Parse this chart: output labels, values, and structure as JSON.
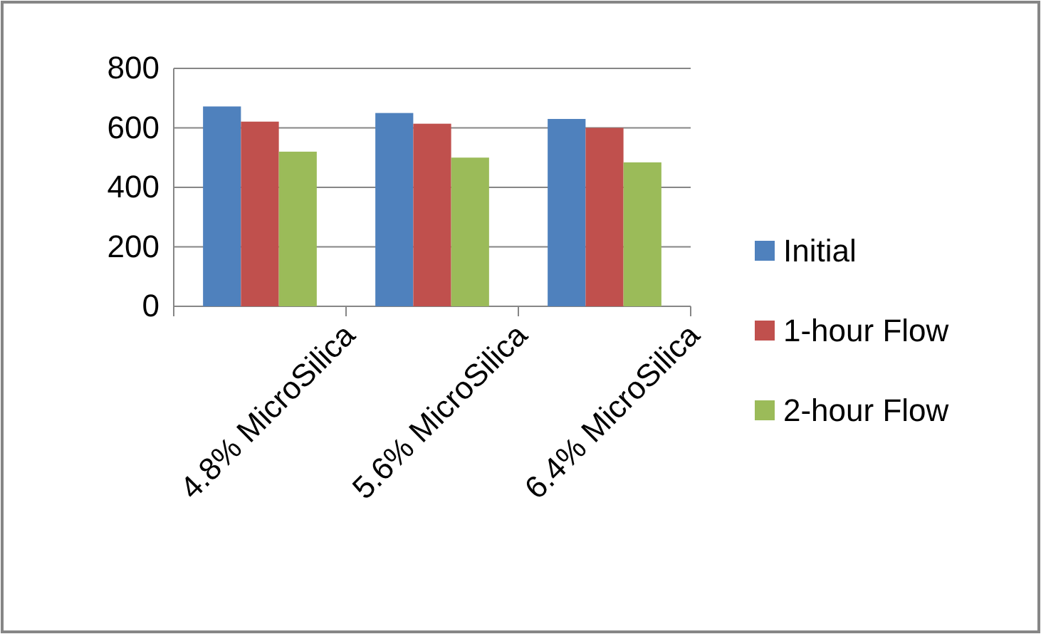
{
  "chart_data": {
    "type": "bar",
    "categories": [
      "4.8% MicroSilica",
      "5.6% MicroSilica",
      "6.4% MicroSilica"
    ],
    "series": [
      {
        "name": "Initial",
        "color": "#4f81bd",
        "values": [
          672,
          650,
          630
        ]
      },
      {
        "name": "1-hour Flow",
        "color": "#c0504d",
        "values": [
          621,
          614,
          600
        ]
      },
      {
        "name": "2-hour Flow",
        "color": "#9bbb59",
        "values": [
          520,
          500,
          484
        ]
      }
    ],
    "ylim": [
      0,
      800
    ],
    "yticks": [
      0,
      200,
      400,
      600,
      800
    ],
    "grid": "y",
    "legend": "right"
  }
}
